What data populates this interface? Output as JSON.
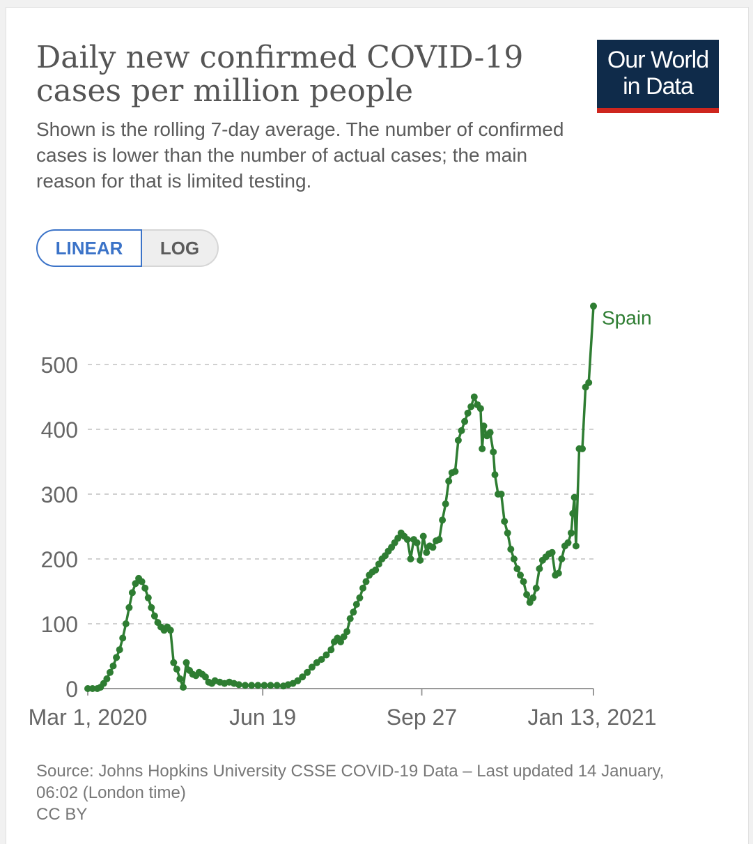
{
  "header": {
    "title_line1": "Daily new confirmed COVID-19",
    "title_line2": "cases per million people",
    "subtitle": "Shown is the rolling 7-day average. The number of confirmed cases is lower than the number of actual cases; the main reason for that is limited testing."
  },
  "logo": {
    "line1": "Our World",
    "line2": "in Data"
  },
  "scale_toggle": {
    "linear_label": "LINEAR",
    "log_label": "LOG",
    "selected": "linear"
  },
  "footer": {
    "source": "Source: Johns Hopkins University CSSE COVID-19 Data – Last updated 14 January, 06:02 (London time)",
    "license": "CC BY"
  },
  "colors": {
    "series": "#2e7d32",
    "accent": "#3b73c8",
    "logo_bg": "#0f2b4a",
    "logo_bar": "#ce261e"
  },
  "chart_data": {
    "type": "line",
    "title": "Daily new confirmed COVID-19 cases per million people",
    "xlabel": "",
    "ylabel": "",
    "x_range": [
      "2020-03-01",
      "2021-01-13"
    ],
    "x_ticks": [
      {
        "date": "2020-03-01",
        "label": "Mar 1, 2020"
      },
      {
        "date": "2020-06-19",
        "label": "Jun 19"
      },
      {
        "date": "2020-09-27",
        "label": "Sep 27"
      },
      {
        "date": "2021-01-13",
        "label": "Jan 13, 2021"
      }
    ],
    "ylim": [
      0,
      600
    ],
    "y_ticks": [
      0,
      100,
      200,
      300,
      400,
      500
    ],
    "grid": true,
    "legend": "line-end label",
    "series": [
      {
        "name": "Spain",
        "points": [
          [
            "2020-03-01",
            0
          ],
          [
            "2020-03-04",
            0
          ],
          [
            "2020-03-07",
            0
          ],
          [
            "2020-03-09",
            2
          ],
          [
            "2020-03-11",
            8
          ],
          [
            "2020-03-13",
            15
          ],
          [
            "2020-03-15",
            25
          ],
          [
            "2020-03-17",
            35
          ],
          [
            "2020-03-19",
            48
          ],
          [
            "2020-03-21",
            60
          ],
          [
            "2020-03-23",
            78
          ],
          [
            "2020-03-25",
            100
          ],
          [
            "2020-03-27",
            125
          ],
          [
            "2020-03-29",
            148
          ],
          [
            "2020-03-31",
            162
          ],
          [
            "2020-04-02",
            170
          ],
          [
            "2020-04-04",
            165
          ],
          [
            "2020-04-06",
            155
          ],
          [
            "2020-04-08",
            140
          ],
          [
            "2020-04-10",
            125
          ],
          [
            "2020-04-12",
            112
          ],
          [
            "2020-04-14",
            102
          ],
          [
            "2020-04-16",
            95
          ],
          [
            "2020-04-18",
            90
          ],
          [
            "2020-04-20",
            95
          ],
          [
            "2020-04-22",
            90
          ],
          [
            "2020-04-24",
            40
          ],
          [
            "2020-04-26",
            30
          ],
          [
            "2020-04-28",
            15
          ],
          [
            "2020-04-30",
            2
          ],
          [
            "2020-05-02",
            40
          ],
          [
            "2020-05-04",
            28
          ],
          [
            "2020-05-06",
            22
          ],
          [
            "2020-05-08",
            20
          ],
          [
            "2020-05-10",
            25
          ],
          [
            "2020-05-12",
            22
          ],
          [
            "2020-05-14",
            18
          ],
          [
            "2020-05-16",
            10
          ],
          [
            "2020-05-18",
            8
          ],
          [
            "2020-05-20",
            12
          ],
          [
            "2020-05-23",
            10
          ],
          [
            "2020-05-26",
            8
          ],
          [
            "2020-05-29",
            10
          ],
          [
            "2020-06-01",
            8
          ],
          [
            "2020-06-04",
            6
          ],
          [
            "2020-06-08",
            5
          ],
          [
            "2020-06-12",
            5
          ],
          [
            "2020-06-16",
            5
          ],
          [
            "2020-06-20",
            5
          ],
          [
            "2020-06-24",
            5
          ],
          [
            "2020-06-28",
            5
          ],
          [
            "2020-07-02",
            4
          ],
          [
            "2020-07-05",
            6
          ],
          [
            "2020-07-08",
            8
          ],
          [
            "2020-07-11",
            12
          ],
          [
            "2020-07-14",
            18
          ],
          [
            "2020-07-17",
            25
          ],
          [
            "2020-07-20",
            33
          ],
          [
            "2020-07-23",
            40
          ],
          [
            "2020-07-26",
            45
          ],
          [
            "2020-07-29",
            52
          ],
          [
            "2020-08-01",
            60
          ],
          [
            "2020-08-03",
            72
          ],
          [
            "2020-08-05",
            78
          ],
          [
            "2020-08-07",
            72
          ],
          [
            "2020-08-09",
            80
          ],
          [
            "2020-08-11",
            88
          ],
          [
            "2020-08-13",
            108
          ],
          [
            "2020-08-15",
            118
          ],
          [
            "2020-08-17",
            130
          ],
          [
            "2020-08-19",
            140
          ],
          [
            "2020-08-21",
            155
          ],
          [
            "2020-08-23",
            165
          ],
          [
            "2020-08-25",
            175
          ],
          [
            "2020-08-27",
            180
          ],
          [
            "2020-08-29",
            183
          ],
          [
            "2020-08-31",
            192
          ],
          [
            "2020-09-02",
            200
          ],
          [
            "2020-09-04",
            205
          ],
          [
            "2020-09-06",
            212
          ],
          [
            "2020-09-08",
            218
          ],
          [
            "2020-09-10",
            225
          ],
          [
            "2020-09-12",
            232
          ],
          [
            "2020-09-14",
            240
          ],
          [
            "2020-09-16",
            235
          ],
          [
            "2020-09-18",
            230
          ],
          [
            "2020-09-20",
            200
          ],
          [
            "2020-09-22",
            230
          ],
          [
            "2020-09-24",
            225
          ],
          [
            "2020-09-26",
            198
          ],
          [
            "2020-09-28",
            235
          ],
          [
            "2020-09-30",
            210
          ],
          [
            "2020-10-02",
            220
          ],
          [
            "2020-10-04",
            218
          ],
          [
            "2020-10-06",
            228
          ],
          [
            "2020-10-08",
            230
          ],
          [
            "2020-10-10",
            260
          ],
          [
            "2020-10-12",
            285
          ],
          [
            "2020-10-14",
            320
          ],
          [
            "2020-10-16",
            333
          ],
          [
            "2020-10-18",
            335
          ],
          [
            "2020-10-20",
            383
          ],
          [
            "2020-10-22",
            398
          ],
          [
            "2020-10-24",
            412
          ],
          [
            "2020-10-26",
            425
          ],
          [
            "2020-10-28",
            435
          ],
          [
            "2020-10-30",
            450
          ],
          [
            "2020-11-01",
            438
          ],
          [
            "2020-11-03",
            432
          ],
          [
            "2020-11-04",
            370
          ],
          [
            "2020-11-05",
            405
          ],
          [
            "2020-11-07",
            390
          ],
          [
            "2020-11-09",
            395
          ],
          [
            "2020-11-11",
            365
          ],
          [
            "2020-11-12",
            330
          ],
          [
            "2020-11-14",
            300
          ],
          [
            "2020-11-16",
            300
          ],
          [
            "2020-11-18",
            258
          ],
          [
            "2020-11-20",
            240
          ],
          [
            "2020-11-22",
            215
          ],
          [
            "2020-11-24",
            200
          ],
          [
            "2020-11-26",
            185
          ],
          [
            "2020-11-28",
            175
          ],
          [
            "2020-11-30",
            165
          ],
          [
            "2020-12-02",
            145
          ],
          [
            "2020-12-04",
            133
          ],
          [
            "2020-12-06",
            140
          ],
          [
            "2020-12-08",
            155
          ],
          [
            "2020-12-10",
            185
          ],
          [
            "2020-12-12",
            198
          ],
          [
            "2020-12-14",
            203
          ],
          [
            "2020-12-16",
            208
          ],
          [
            "2020-12-18",
            210
          ],
          [
            "2020-12-20",
            175
          ],
          [
            "2020-12-22",
            178
          ],
          [
            "2020-12-24",
            200
          ],
          [
            "2020-12-26",
            220
          ],
          [
            "2020-12-28",
            225
          ],
          [
            "2020-12-30",
            240
          ],
          [
            "2020-12-31",
            270
          ],
          [
            "2021-01-01",
            295
          ],
          [
            "2021-01-02",
            220
          ],
          [
            "2021-01-04",
            370
          ],
          [
            "2021-01-06",
            370
          ],
          [
            "2021-01-08",
            465
          ],
          [
            "2021-01-10",
            472
          ],
          [
            "2021-01-13",
            590
          ]
        ]
      }
    ]
  }
}
